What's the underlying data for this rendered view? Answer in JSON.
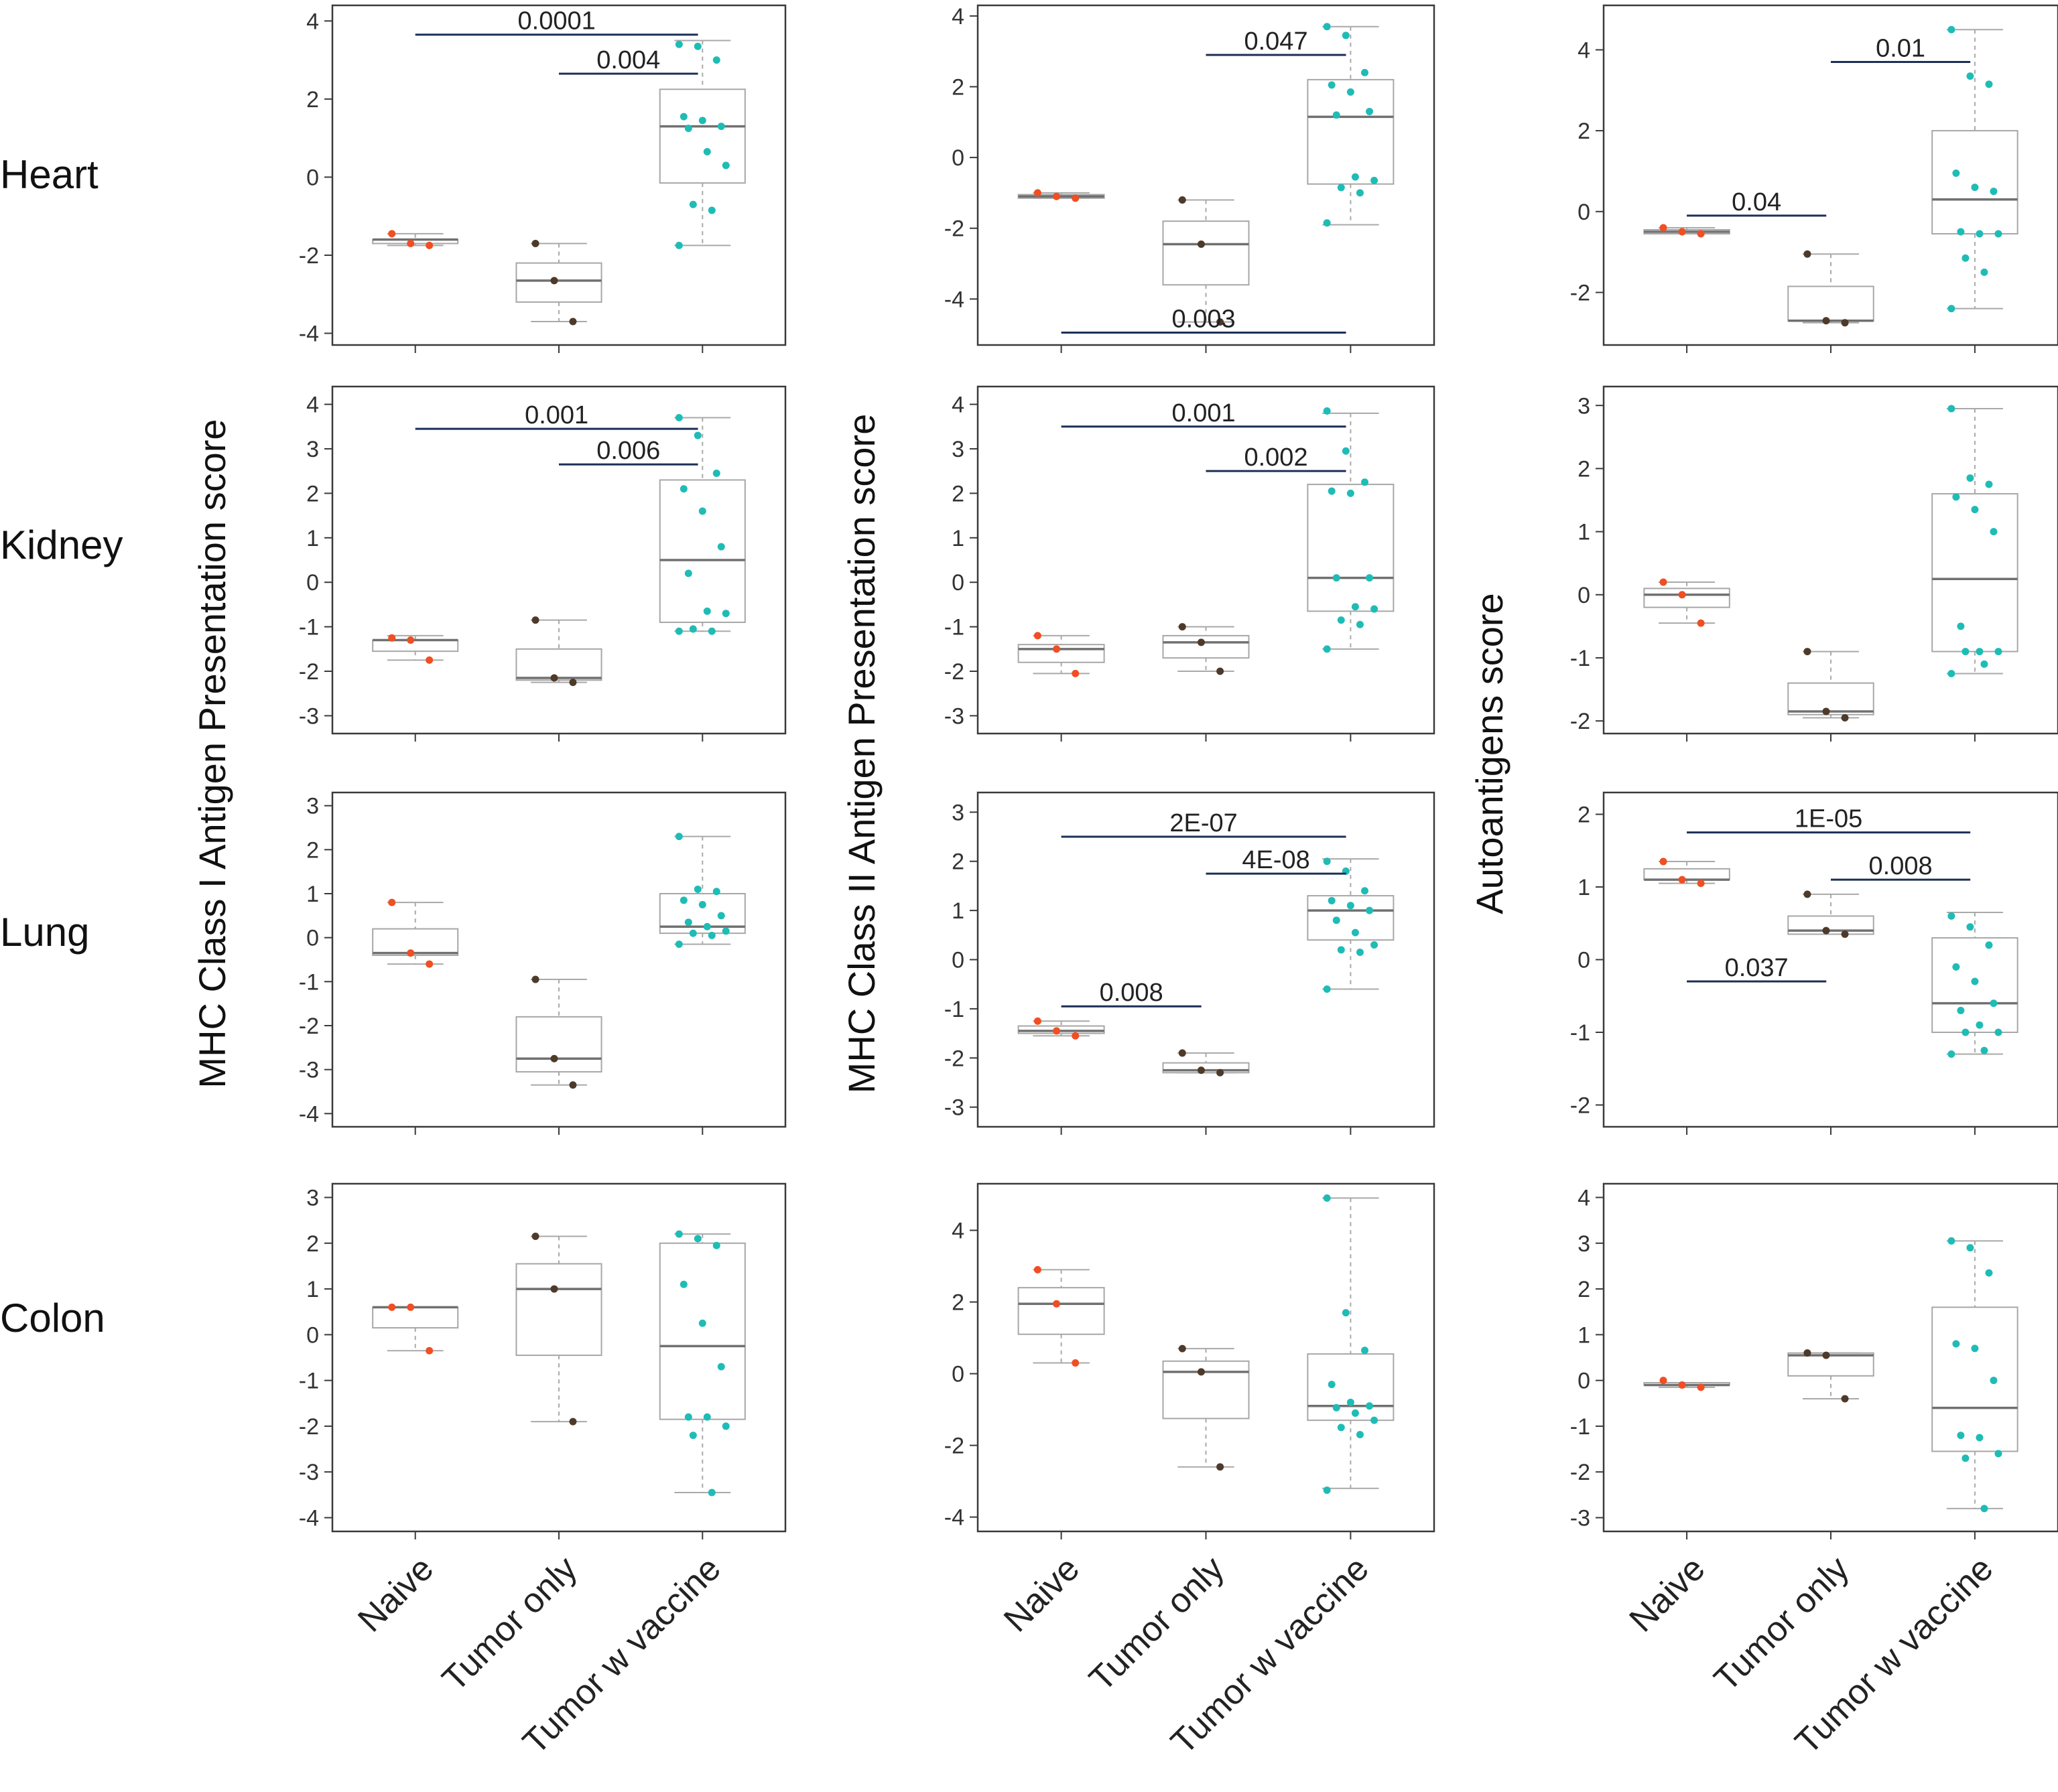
{
  "chart_data": {
    "type": "box",
    "layout": "4 rows x 3 columns small multiples",
    "categories": [
      "Naive",
      "Tumor only",
      "Tumor w vaccine"
    ],
    "row_labels": [
      "Heart",
      "Kidney",
      "Lung",
      "Colon"
    ],
    "column_titles": [
      "MHC Class I Antigen Presentation score",
      "MHC Class II Antigen Presentation score",
      "Autoantigens score"
    ],
    "group_colors": [
      "#f04e23",
      "#4d3a2a",
      "#1fbcb6"
    ],
    "panels": [
      {
        "row": "Heart",
        "column": "MHC Class I Antigen Presentation score",
        "ylim": [
          -4.3,
          4.4
        ],
        "yticks": [
          "4",
          "2",
          "0",
          "-2",
          "-4"
        ],
        "groups": [
          {
            "category": "Naive",
            "stats": [
              -1.75,
              -1.7,
              -1.6,
              -1.6,
              -1.45
            ],
            "points": [
              -1.45,
              -1.7,
              -1.75
            ]
          },
          {
            "category": "Tumor only",
            "stats": [
              -3.7,
              -3.2,
              -2.65,
              -2.2,
              -1.7
            ],
            "points": [
              -1.7,
              -2.65,
              -3.7
            ]
          },
          {
            "category": "Tumor w vaccine",
            "stats": [
              -1.75,
              -0.15,
              1.3,
              2.25,
              3.5
            ],
            "points": [
              3.4,
              3.35,
              3.0,
              1.55,
              1.45,
              1.3,
              1.25,
              0.65,
              0.3,
              -0.7,
              -0.85,
              -1.75
            ]
          }
        ],
        "comparisons": [
          {
            "from": "Naive",
            "to": "Tumor w vaccine",
            "label": "0.0001",
            "y": 3.65
          },
          {
            "from": "Tumor only",
            "to": "Tumor w vaccine",
            "label": "0.004",
            "y": 2.65
          }
        ]
      },
      {
        "row": "Heart",
        "column": "MHC Class II Antigen Presentation score",
        "ylim": [
          -5.3,
          4.3
        ],
        "yticks": [
          "4",
          "2",
          "0",
          "-2",
          "-4"
        ],
        "groups": [
          {
            "category": "Naive",
            "stats": [
              -1.15,
              -1.15,
              -1.1,
              -1.05,
              -1.0
            ],
            "points": [
              -1.0,
              -1.1,
              -1.15
            ]
          },
          {
            "category": "Tumor only",
            "stats": [
              -4.65,
              -3.6,
              -2.45,
              -1.8,
              -1.2
            ],
            "points": [
              -1.2,
              -2.45,
              -4.65
            ]
          },
          {
            "category": "Tumor w vaccine",
            "stats": [
              -1.9,
              -0.75,
              1.15,
              2.2,
              3.7
            ],
            "points": [
              3.7,
              3.45,
              2.4,
              2.05,
              1.85,
              1.3,
              1.2,
              -0.55,
              -0.65,
              -0.85,
              -1.0,
              -1.85
            ]
          }
        ],
        "comparisons": [
          {
            "from": "Tumor only",
            "to": "Tumor w vaccine",
            "label": "0.047",
            "y": 2.9
          },
          {
            "from": "Naive",
            "to": "Tumor w vaccine",
            "label": "0.003",
            "y": -4.95
          }
        ]
      },
      {
        "row": "Heart",
        "column": "Autoantigens score",
        "ylim": [
          -3.3,
          5.1
        ],
        "yticks": [
          "4",
          "2",
          "0",
          "-2"
        ],
        "groups": [
          {
            "category": "Naive",
            "stats": [
              -0.55,
              -0.55,
              -0.5,
              -0.45,
              -0.4
            ],
            "points": [
              -0.4,
              -0.5,
              -0.55
            ]
          },
          {
            "category": "Tumor only",
            "stats": [
              -2.75,
              -2.7,
              -2.7,
              -1.85,
              -1.05
            ],
            "points": [
              -1.05,
              -2.7,
              -2.75
            ]
          },
          {
            "category": "Tumor w vaccine",
            "stats": [
              -2.4,
              -0.55,
              0.3,
              2.0,
              4.5
            ],
            "points": [
              4.5,
              3.35,
              3.15,
              0.95,
              0.6,
              0.5,
              -0.5,
              -0.55,
              -0.55,
              -1.15,
              -1.5,
              -2.4
            ]
          }
        ],
        "comparisons": [
          {
            "from": "Tumor only",
            "to": "Tumor w vaccine",
            "label": "0.01",
            "y": 3.7
          },
          {
            "from": "Naive",
            "to": "Tumor only",
            "label": "0.04",
            "y": -0.1
          }
        ]
      },
      {
        "row": "Kidney",
        "column": "MHC Class I Antigen Presentation score",
        "ylim": [
          -3.4,
          4.4
        ],
        "yticks": [
          "4",
          "3",
          "2",
          "1",
          "0",
          "-1",
          "-2",
          "-3"
        ],
        "groups": [
          {
            "category": "Naive",
            "stats": [
              -1.75,
              -1.55,
              -1.3,
              -1.3,
              -1.2
            ],
            "points": [
              -1.25,
              -1.3,
              -1.75
            ]
          },
          {
            "category": "Tumor only",
            "stats": [
              -2.25,
              -2.2,
              -2.15,
              -1.5,
              -0.85
            ],
            "points": [
              -0.85,
              -2.15,
              -2.25
            ]
          },
          {
            "category": "Tumor w vaccine",
            "stats": [
              -1.1,
              -0.9,
              0.5,
              2.3,
              3.7
            ],
            "points": [
              3.7,
              3.3,
              2.45,
              2.1,
              1.6,
              0.8,
              0.2,
              -0.65,
              -0.7,
              -1.05,
              -1.1,
              -1.1
            ]
          }
        ],
        "comparisons": [
          {
            "from": "Naive",
            "to": "Tumor w vaccine",
            "label": "0.001",
            "y": 3.45
          },
          {
            "from": "Tumor only",
            "to": "Tumor w vaccine",
            "label": "0.006",
            "y": 2.65
          }
        ]
      },
      {
        "row": "Kidney",
        "column": "MHC Class II Antigen Presentation score",
        "ylim": [
          -3.4,
          4.4
        ],
        "yticks": [
          "4",
          "3",
          "2",
          "1",
          "0",
          "-1",
          "-2",
          "-3"
        ],
        "groups": [
          {
            "category": "Naive",
            "stats": [
              -2.05,
              -1.8,
              -1.5,
              -1.4,
              -1.2
            ],
            "points": [
              -1.2,
              -1.5,
              -2.05
            ]
          },
          {
            "category": "Tumor only",
            "stats": [
              -2.0,
              -1.7,
              -1.35,
              -1.2,
              -1.0
            ],
            "points": [
              -1.0,
              -1.35,
              -2.0
            ]
          },
          {
            "category": "Tumor w vaccine",
            "stats": [
              -1.5,
              -0.65,
              0.1,
              2.2,
              3.8
            ],
            "points": [
              3.85,
              2.95,
              2.25,
              2.05,
              2.0,
              0.1,
              0.1,
              -0.55,
              -0.6,
              -0.85,
              -0.95,
              -1.5
            ]
          }
        ],
        "comparisons": [
          {
            "from": "Naive",
            "to": "Tumor w vaccine",
            "label": "0.001",
            "y": 3.5
          },
          {
            "from": "Tumor only",
            "to": "Tumor w vaccine",
            "label": "0.002",
            "y": 2.5
          }
        ]
      },
      {
        "row": "Kidney",
        "column": "Autoantigens score",
        "ylim": [
          -2.2,
          3.3
        ],
        "yticks": [
          "3",
          "2",
          "1",
          "0",
          "-1",
          "-2"
        ],
        "groups": [
          {
            "category": "Naive",
            "stats": [
              -0.45,
              -0.2,
              0.0,
              0.1,
              0.2
            ],
            "points": [
              0.2,
              0.0,
              -0.45
            ]
          },
          {
            "category": "Tumor only",
            "stats": [
              -1.95,
              -1.9,
              -1.85,
              -1.4,
              -0.9
            ],
            "points": [
              -0.9,
              -1.85,
              -1.95
            ]
          },
          {
            "category": "Tumor w vaccine",
            "stats": [
              -1.25,
              -0.9,
              0.25,
              1.6,
              2.95
            ],
            "points": [
              2.95,
              1.85,
              1.75,
              1.55,
              1.35,
              1.0,
              -0.5,
              -0.9,
              -0.9,
              -0.9,
              -1.1,
              -1.25
            ]
          }
        ],
        "comparisons": []
      },
      {
        "row": "Lung",
        "column": "MHC Class I Antigen Presentation score",
        "ylim": [
          -4.3,
          3.3
        ],
        "yticks": [
          "3",
          "2",
          "1",
          "0",
          "-1",
          "-2",
          "-3",
          "-4"
        ],
        "groups": [
          {
            "category": "Naive",
            "stats": [
              -0.6,
              -0.4,
              -0.35,
              0.2,
              0.8
            ],
            "points": [
              0.8,
              -0.35,
              -0.6
            ]
          },
          {
            "category": "Tumor only",
            "stats": [
              -3.35,
              -3.05,
              -2.75,
              -1.8,
              -0.95
            ],
            "points": [
              -0.95,
              -2.75,
              -3.35
            ]
          },
          {
            "category": "Tumor w vaccine",
            "stats": [
              -0.15,
              0.1,
              0.25,
              1.0,
              2.3
            ],
            "points": [
              2.3,
              1.1,
              1.05,
              0.85,
              0.75,
              0.5,
              0.35,
              0.25,
              0.15,
              0.1,
              0.05,
              -0.15
            ]
          }
        ],
        "comparisons": []
      },
      {
        "row": "Lung",
        "column": "MHC Class II Antigen Presentation score",
        "ylim": [
          -3.4,
          3.4
        ],
        "yticks": [
          "3",
          "2",
          "1",
          "0",
          "-1",
          "-2",
          "-3"
        ],
        "groups": [
          {
            "category": "Naive",
            "stats": [
              -1.55,
              -1.5,
              -1.45,
              -1.35,
              -1.25
            ],
            "points": [
              -1.25,
              -1.45,
              -1.55
            ]
          },
          {
            "category": "Tumor only",
            "stats": [
              -2.3,
              -2.3,
              -2.25,
              -2.1,
              -1.9
            ],
            "points": [
              -1.9,
              -2.25,
              -2.3
            ]
          },
          {
            "category": "Tumor w vaccine",
            "stats": [
              -0.6,
              0.4,
              1.0,
              1.3,
              2.05
            ],
            "points": [
              2.0,
              1.8,
              1.4,
              1.2,
              1.1,
              1.0,
              0.8,
              0.55,
              0.3,
              0.2,
              0.15,
              -0.6
            ]
          }
        ],
        "comparisons": [
          {
            "from": "Naive",
            "to": "Tumor w vaccine",
            "label": "2E-07",
            "y": 2.5
          },
          {
            "from": "Tumor only",
            "to": "Tumor w vaccine",
            "label": "4E-08",
            "y": 1.75
          },
          {
            "from": "Naive",
            "to": "Tumor only",
            "label": "0.008",
            "y": -0.95
          }
        ]
      },
      {
        "row": "Lung",
        "column": "Autoantigens score",
        "ylim": [
          -2.3,
          2.3
        ],
        "yticks": [
          "2",
          "1",
          "0",
          "-1",
          "-2"
        ],
        "groups": [
          {
            "category": "Naive",
            "stats": [
              1.05,
              1.1,
              1.1,
              1.25,
              1.35
            ],
            "points": [
              1.35,
              1.1,
              1.05
            ]
          },
          {
            "category": "Tumor only",
            "stats": [
              0.35,
              0.35,
              0.4,
              0.6,
              0.9
            ],
            "points": [
              0.9,
              0.4,
              0.35
            ]
          },
          {
            "category": "Tumor w vaccine",
            "stats": [
              -1.3,
              -1.0,
              -0.6,
              0.3,
              0.65
            ],
            "points": [
              0.6,
              0.45,
              0.2,
              -0.1,
              -0.3,
              -0.6,
              -0.7,
              -0.9,
              -1.0,
              -1.0,
              -1.25,
              -1.3
            ]
          }
        ],
        "comparisons": [
          {
            "from": "Naive",
            "to": "Tumor w vaccine",
            "label": "1E-05",
            "y": 1.75
          },
          {
            "from": "Tumor only",
            "to": "Tumor w vaccine",
            "label": "0.008",
            "y": 1.1
          },
          {
            "from": "Naive",
            "to": "Tumor only",
            "label": "0.037",
            "y": -0.3
          }
        ]
      },
      {
        "row": "Colon",
        "column": "MHC Class I Antigen Presentation score",
        "ylim": [
          -4.3,
          3.3
        ],
        "yticks": [
          "3",
          "2",
          "1",
          "0",
          "-1",
          "-2",
          "-3",
          "-4"
        ],
        "groups": [
          {
            "category": "Naive",
            "stats": [
              -0.35,
              0.15,
              0.6,
              0.6,
              0.6
            ],
            "points": [
              0.6,
              0.6,
              -0.35
            ]
          },
          {
            "category": "Tumor only",
            "stats": [
              -1.9,
              -0.45,
              1.0,
              1.55,
              2.15
            ],
            "points": [
              2.15,
              1.0,
              -1.9
            ]
          },
          {
            "category": "Tumor w vaccine",
            "stats": [
              -3.45,
              -1.85,
              -0.25,
              2.0,
              2.2
            ],
            "points": [
              2.2,
              2.1,
              1.95,
              1.1,
              0.25,
              -0.7,
              -1.8,
              -1.8,
              -2.0,
              -2.2,
              -3.45
            ]
          }
        ],
        "comparisons": []
      },
      {
        "row": "Colon",
        "column": "MHC Class II Antigen Presentation score",
        "ylim": [
          -4.4,
          5.3
        ],
        "yticks": [
          "4",
          "2",
          "0",
          "-2",
          "-4"
        ],
        "groups": [
          {
            "category": "Naive",
            "stats": [
              0.3,
              1.1,
              1.95,
              2.4,
              2.9
            ],
            "points": [
              2.9,
              1.95,
              0.3
            ]
          },
          {
            "category": "Tumor only",
            "stats": [
              -2.6,
              -1.25,
              0.05,
              0.35,
              0.7
            ],
            "points": [
              0.7,
              0.05,
              -2.6
            ]
          },
          {
            "category": "Tumor w vaccine",
            "stats": [
              -3.2,
              -1.3,
              -0.9,
              0.55,
              4.9
            ],
            "points": [
              4.9,
              1.7,
              0.65,
              -0.3,
              -0.8,
              -0.9,
              -0.95,
              -1.1,
              -1.3,
              -1.5,
              -1.7,
              -3.25
            ]
          }
        ],
        "comparisons": []
      },
      {
        "row": "Colon",
        "column": "Autoantigens score",
        "ylim": [
          -3.3,
          4.3
        ],
        "yticks": [
          "4",
          "3",
          "2",
          "1",
          "0",
          "-1",
          "-2",
          "-3"
        ],
        "groups": [
          {
            "category": "Naive",
            "stats": [
              -0.15,
              -0.1,
              -0.1,
              -0.05,
              -0.05
            ],
            "points": [
              0.0,
              -0.1,
              -0.15
            ]
          },
          {
            "category": "Tumor only",
            "stats": [
              -0.4,
              0.1,
              0.55,
              0.6,
              0.6
            ],
            "points": [
              0.6,
              0.55,
              -0.4
            ]
          },
          {
            "category": "Tumor w vaccine",
            "stats": [
              -2.8,
              -1.55,
              -0.6,
              1.6,
              3.05
            ],
            "points": [
              3.05,
              2.9,
              2.35,
              0.8,
              0.7,
              0.0,
              -1.2,
              -1.25,
              -1.6,
              -1.7,
              -2.8
            ]
          }
        ],
        "comparisons": []
      }
    ]
  }
}
